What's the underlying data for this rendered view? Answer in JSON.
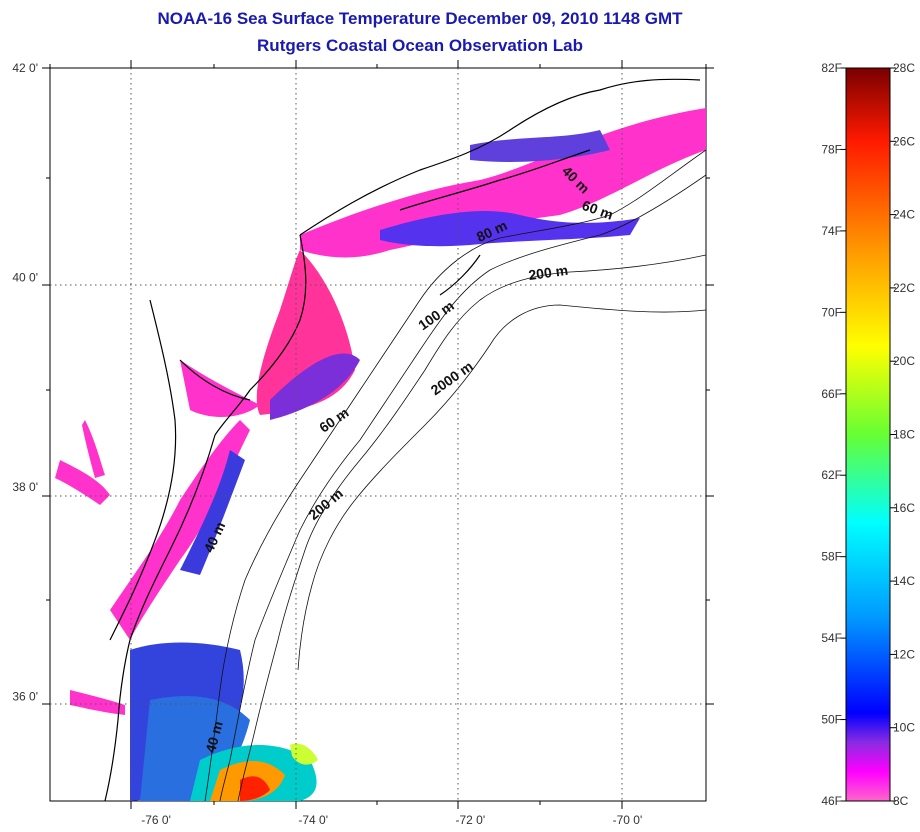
{
  "title_line1": "NOAA-16 Sea Surface Temperature December 09, 2010 1148 GMT",
  "title_line2": "Rutgers Coastal Ocean Observation Lab",
  "lat_labels": [
    {
      "lat": 42,
      "label": "42 0'"
    },
    {
      "lat": 40,
      "label": "40 0'"
    },
    {
      "lat": 38,
      "label": "38 0'"
    },
    {
      "lat": 36,
      "label": "36 0'"
    }
  ],
  "lon_labels": [
    {
      "lon": -76,
      "label": "-76 0'"
    },
    {
      "lon": -74,
      "label": "-74 0'"
    },
    {
      "lon": -72,
      "label": "-72 0'"
    },
    {
      "lon": -70,
      "label": "-70 0'"
    }
  ],
  "map_extent": {
    "lon_min": -77.35,
    "lon_max": -69.0,
    "lat_min": 35.0,
    "lat_max": 42.0
  },
  "isobath_labels": [
    {
      "text": "40 m",
      "lon": -70.7,
      "lat": 40.9,
      "rot": 45
    },
    {
      "text": "60 m",
      "lon": -70.4,
      "lat": 40.6,
      "rot": 20
    },
    {
      "text": "80 m",
      "lon": -71.7,
      "lat": 40.4,
      "rot": -25
    },
    {
      "text": "200 m",
      "lon": -71.0,
      "lat": 40.0,
      "rot": -8
    },
    {
      "text": "100 m",
      "lon": -72.4,
      "lat": 39.6,
      "rot": -35
    },
    {
      "text": "2000 m",
      "lon": -72.2,
      "lat": 39.0,
      "rot": -35
    },
    {
      "text": "60 m",
      "lon": -73.7,
      "lat": 38.6,
      "rot": -35
    },
    {
      "text": "200 m",
      "lon": -73.8,
      "lat": 37.8,
      "rot": -40
    },
    {
      "text": "40 m",
      "lon": -75.2,
      "lat": 37.5,
      "rot": -65
    },
    {
      "text": "40 m",
      "lon": -75.2,
      "lat": 35.6,
      "rot": -75
    }
  ],
  "colorbar": {
    "fahrenheit_labels": [
      "82F",
      "78F",
      "74F",
      "70F",
      "66F",
      "62F",
      "58F",
      "54F",
      "50F",
      "46F"
    ],
    "celsius_labels": [
      "28C",
      "26C",
      "24C",
      "22C",
      "20C",
      "18C",
      "16C",
      "14C",
      "12C",
      "10C",
      "8C"
    ],
    "colors": {
      "top": "#7a0000",
      "red": "#ff1a00",
      "orange": "#ff9900",
      "yellow": "#ffff00",
      "green": "#66ff33",
      "cyan": "#00ffff",
      "lightblue": "#0099ff",
      "blue": "#0000ff",
      "purple": "#8a2be2",
      "magenta": "#ff00ff",
      "pink": "#ff66cc"
    }
  }
}
